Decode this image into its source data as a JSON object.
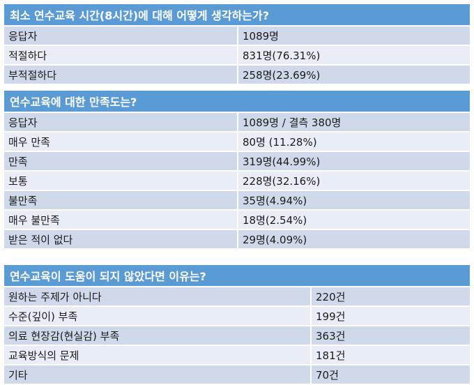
{
  "tables": [
    {
      "title": "최소 연수교육 시간(8시간)에 대해 어떻게 생각하는가?",
      "rows": [
        [
          "응답자",
          "1089명"
        ],
        [
          "적절하다",
          "831명(76.31%)"
        ],
        [
          "부적절하다",
          "258명(23.69%)"
        ]
      ]
    },
    {
      "title": "연수교육에 대한 만족도는?",
      "rows": [
        [
          "응답자",
          "1089명 / 결측 380명"
        ],
        [
          "매우 만족",
          "80명 (11.28%)"
        ],
        [
          "만족",
          "319명(44.99%)"
        ],
        [
          "보통",
          "228명(32.16%)"
        ],
        [
          "불만족",
          "35명(4.94%)"
        ],
        [
          "매우 불만족",
          "18명(2.54%)"
        ],
        [
          "받은 적이 없다",
          "29명(4.09%)"
        ]
      ]
    },
    {
      "title": "연수교육이 도움이 되지 않았다면 이유는?",
      "rows": [
        [
          "원하는 주제가 아니다",
          "220건"
        ],
        [
          "수준(깊이) 부족",
          "199건"
        ],
        [
          "의료 현장감(현실감) 부족",
          "363건"
        ],
        [
          "교육방식의 문제",
          "181건"
        ],
        [
          "기타",
          "70건"
        ]
      ]
    }
  ]
}
